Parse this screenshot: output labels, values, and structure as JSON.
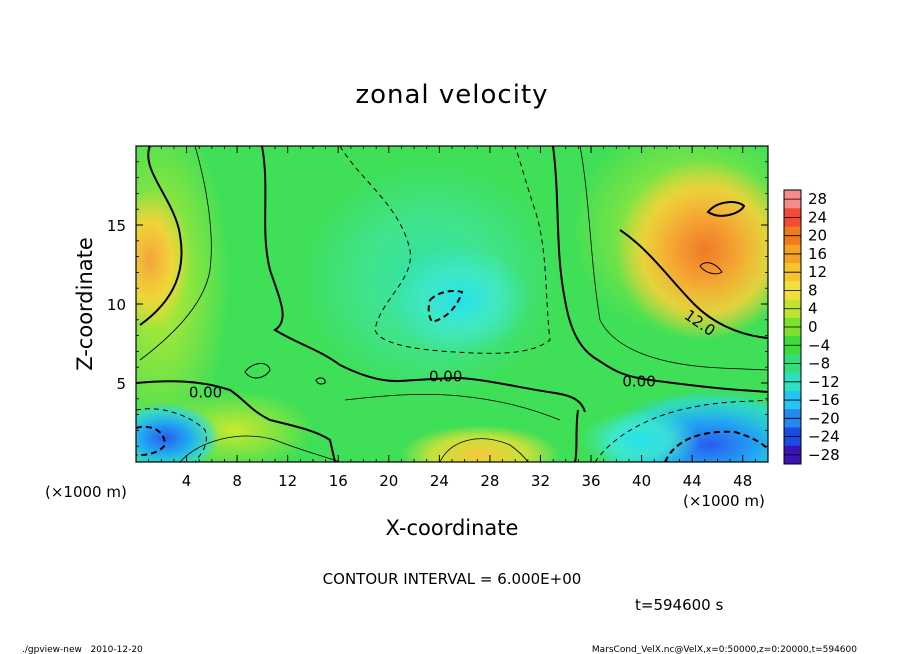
{
  "chart_data": {
    "type": "heatmap",
    "title": "zonal velocity",
    "xlabel": "X-coordinate",
    "ylabel": "Z-coordinate",
    "x_unit": "(×1000 m)",
    "y_unit": "(×1000 m)",
    "xlim": [
      0,
      50
    ],
    "ylim": [
      0,
      20
    ],
    "x_ticks": [
      4,
      8,
      12,
      16,
      20,
      24,
      28,
      32,
      36,
      40,
      44,
      48
    ],
    "y_ticks": [
      5,
      10,
      15
    ],
    "colorbar": {
      "ticks": [
        28,
        24,
        20,
        16,
        12,
        8,
        4,
        0,
        -4,
        -8,
        -12,
        -16,
        -20,
        -24,
        -28
      ],
      "range": [
        -30,
        30
      ]
    },
    "contour_labels": [
      {
        "text": "0.00",
        "x": 5.5,
        "y": 4.4
      },
      {
        "text": "0.00",
        "x": 24.5,
        "y": 5.4
      },
      {
        "text": "0.00",
        "x": 39.8,
        "y": 5.1
      },
      {
        "text": "12.0",
        "x": 44.6,
        "y": 8.8
      }
    ],
    "contour_interval_text": "CONTOUR INTERVAL = 6.000E+00",
    "time_text": "t=594600 s",
    "grid": false
  },
  "footer": {
    "left": "./gpview-new   2010-12-20",
    "right": "MarsCond_VelX.nc@VelX,x=0:50000,z=0:20000,t=594600"
  }
}
